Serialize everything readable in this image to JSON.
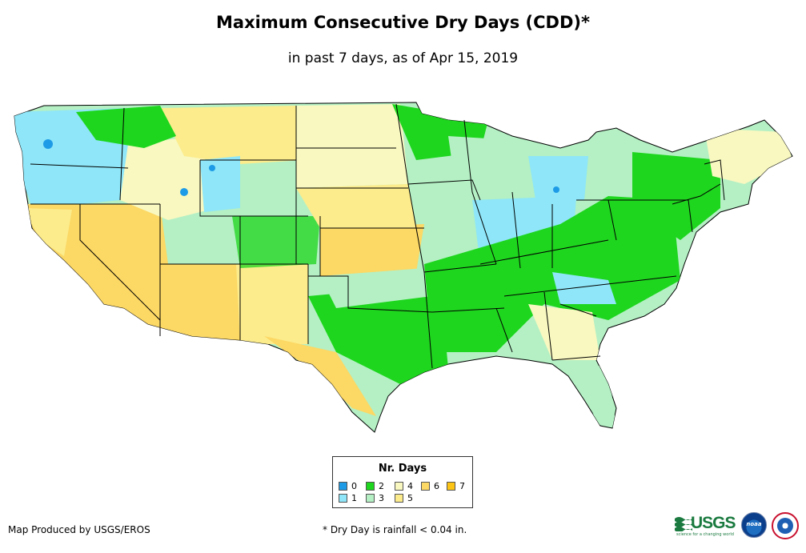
{
  "title": "Maximum Consecutive Dry Days (CDD)*",
  "subtitle": "in past 7 days, as of Apr 15, 2019",
  "legend": {
    "title": "Nr. Days",
    "items": [
      {
        "label": "0",
        "color": "#1e9be6"
      },
      {
        "label": "1",
        "color": "#8ee6f8"
      },
      {
        "label": "2",
        "color": "#1ed61e"
      },
      {
        "label": "3",
        "color": "#b4f0c4"
      },
      {
        "label": "4",
        "color": "#f8f8c0"
      },
      {
        "label": "5",
        "color": "#fcec8c"
      },
      {
        "label": "6",
        "color": "#fcd864"
      },
      {
        "label": "7",
        "color": "#fcc414"
      }
    ]
  },
  "credit": "Map Produced by USGS/EROS",
  "footnote": "* Dry Day is rainfall < 0.04 in.",
  "logos": {
    "usgs": "USGS",
    "usgs_tagline": "science for a changing world",
    "noaa": "noaa",
    "nws_icon": "nws-seal-icon"
  }
}
